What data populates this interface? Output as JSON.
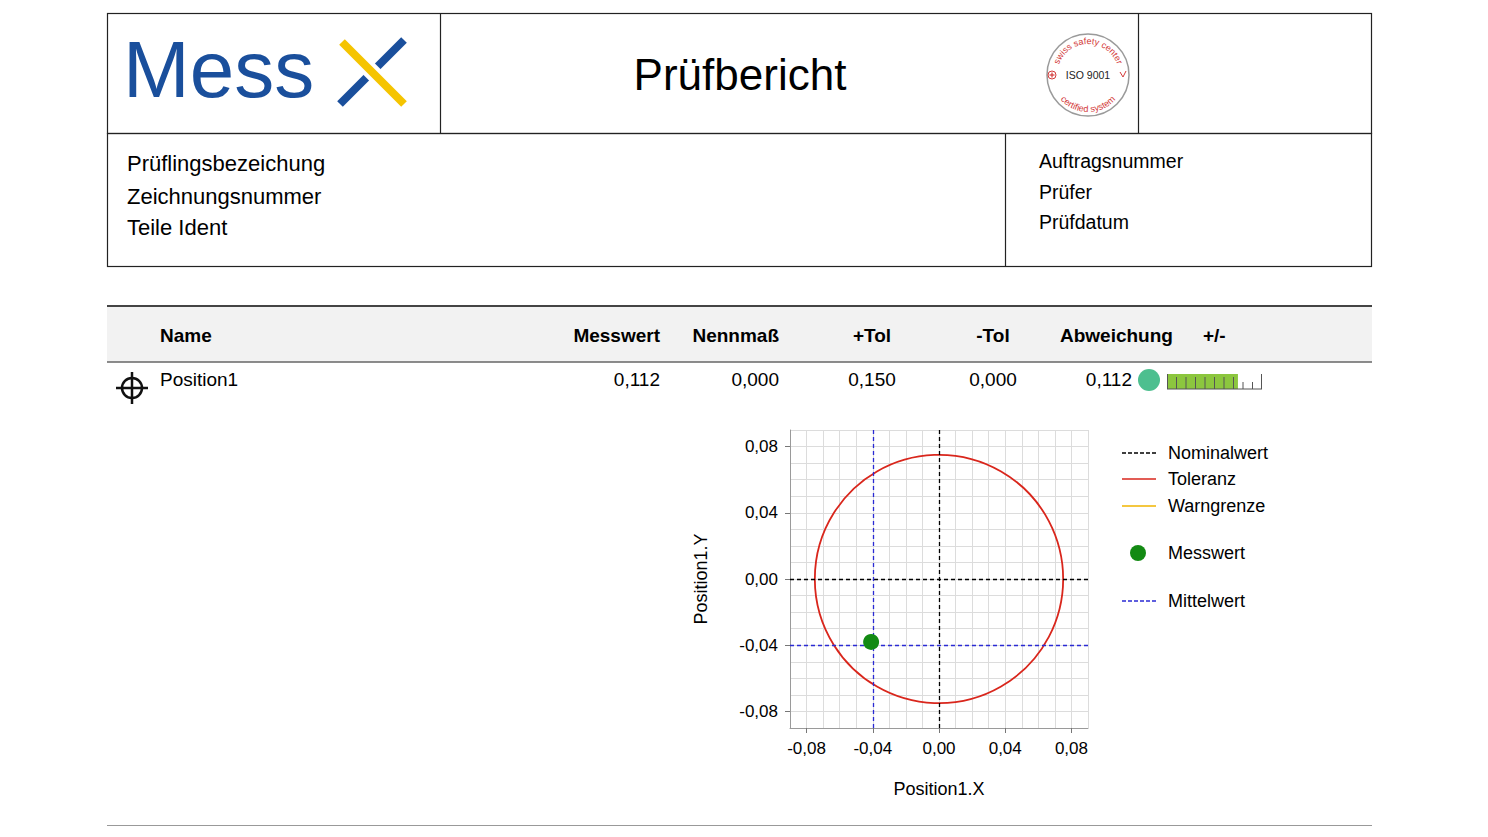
{
  "header": {
    "logo": "Mess",
    "title": "Prüfbericht",
    "badge": {
      "ring_top": "swiss safety center",
      "center": "ISO 9001",
      "ring_bottom": "certified system"
    }
  },
  "info": {
    "left": [
      "Prüflingsbezeichung",
      "Zeichnungsnummer",
      "Teile Ident"
    ],
    "right": [
      "Auftragsnummer",
      "Prüfer",
      "Prüfdatum"
    ]
  },
  "table": {
    "columns": [
      "Name",
      "Messwert",
      "Nennmaß",
      "+Tol",
      "-Tol",
      "Abweichung",
      "+/-"
    ],
    "rows": [
      {
        "name": "Position1",
        "measured": {
          "value": 0.112,
          "label": "0,112"
        },
        "nominal": {
          "value": 0.0,
          "label": "0,000"
        },
        "plus_tol": {
          "value": 0.15,
          "label": "0,150"
        },
        "minus_tol": {
          "value": 0.0,
          "label": "0,000"
        },
        "deviation": {
          "value": 0.112,
          "label": "0,112"
        },
        "color": "#4dbf8f"
      }
    ]
  },
  "chart_data": {
    "type": "scatter",
    "xlabel": "Position1.X",
    "ylabel": "Position1.Y",
    "xlim": [
      -0.09,
      0.09
    ],
    "ylim": [
      -0.09,
      0.09
    ],
    "xticks": [
      {
        "value": -0.08,
        "label": "-0,08"
      },
      {
        "value": -0.04,
        "label": "-0,04"
      },
      {
        "value": 0,
        "label": "0,00"
      },
      {
        "value": 0.04,
        "label": "0,04"
      },
      {
        "value": 0.08,
        "label": "0,08"
      }
    ],
    "yticks": [
      {
        "value": -0.08,
        "label": "-0,08"
      },
      {
        "value": -0.04,
        "label": "-0,04"
      },
      {
        "value": 0,
        "label": "0,00"
      },
      {
        "value": 0.04,
        "label": "0,04"
      },
      {
        "value": 0.08,
        "label": "0,08"
      }
    ],
    "grid": true,
    "legend": "right",
    "series": [
      {
        "name": "Nominalwert",
        "type": "line",
        "color": "#000000",
        "line_style": "dashed",
        "x": [
          0
        ],
        "y": [
          0
        ]
      },
      {
        "name": "Toleranz",
        "type": "circle",
        "color": "#d9261c",
        "line_style": "solid",
        "center": [
          0,
          0
        ],
        "diameter": 0.15
      },
      {
        "name": "Warngrenze",
        "type": "circle",
        "color": "#f0b400",
        "line_style": "solid"
      },
      {
        "name": "Messwert",
        "type": "scatter",
        "color": "#138a13",
        "marker": "circle",
        "x": [
          -0.041
        ],
        "y": [
          -0.038
        ]
      },
      {
        "name": "Mittelwert",
        "type": "line",
        "color": "#2a2ad4",
        "line_style": "dashed",
        "x": [
          -0.041
        ],
        "y": [
          -0.038
        ]
      }
    ]
  }
}
